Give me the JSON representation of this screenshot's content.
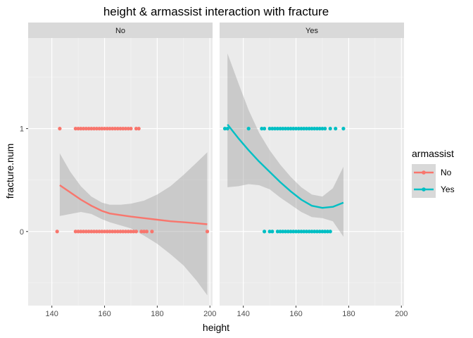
{
  "chart_data": {
    "type": "scatter",
    "title": "height & armassist  interaction with fracture",
    "xlabel": "height",
    "ylabel": "fracture.num",
    "xlim": [
      131,
      201
    ],
    "ylim": [
      -0.72,
      1.88
    ],
    "x_ticks": [
      140,
      160,
      180,
      200
    ],
    "x_tick_labels": [
      "140",
      "160",
      "180",
      "200"
    ],
    "y_ticks": [
      0,
      1
    ],
    "y_tick_labels": [
      "0",
      "1"
    ],
    "grid": true,
    "legend": {
      "title": "armassist",
      "position": "right",
      "entries": [
        {
          "label": "No",
          "color": "#F8766D"
        },
        {
          "label": "Yes",
          "color": "#00BFC4"
        }
      ]
    },
    "panels": [
      {
        "label": "No",
        "color": "#F8766D",
        "points_y1": [
          143,
          149,
          150,
          151,
          152,
          153,
          154,
          155,
          156,
          157,
          158,
          159,
          160,
          161,
          162,
          163,
          164,
          165,
          166,
          167,
          168,
          169,
          170,
          172,
          173
        ],
        "points_y0": [
          142,
          149,
          150,
          151,
          152,
          153,
          154,
          155,
          156,
          157,
          158,
          159,
          160,
          161,
          162,
          163,
          164,
          165,
          166,
          167,
          168,
          169,
          170,
          171,
          172,
          174,
          175,
          176,
          178,
          199
        ],
        "smooth": {
          "x": [
            143,
            147,
            151,
            155,
            159,
            162,
            166,
            170,
            175,
            180,
            185,
            190,
            195,
            199
          ],
          "y": [
            0.45,
            0.38,
            0.31,
            0.25,
            0.2,
            0.175,
            0.16,
            0.145,
            0.13,
            0.115,
            0.1,
            0.09,
            0.08,
            0.07
          ],
          "lo": [
            0.15,
            0.17,
            0.19,
            0.17,
            0.12,
            0.09,
            0.06,
            0.03,
            -0.04,
            -0.12,
            -0.22,
            -0.33,
            -0.48,
            -0.62
          ],
          "hi": [
            0.76,
            0.58,
            0.44,
            0.34,
            0.28,
            0.26,
            0.26,
            0.27,
            0.3,
            0.36,
            0.44,
            0.55,
            0.67,
            0.77
          ]
        }
      },
      {
        "label": "Yes",
        "color": "#00BFC4",
        "points_y1": [
          133,
          134,
          142,
          147,
          148,
          150,
          151,
          152,
          153,
          154,
          155,
          156,
          157,
          158,
          159,
          160,
          161,
          162,
          163,
          164,
          165,
          166,
          167,
          168,
          169,
          170,
          171,
          173,
          175,
          178
        ],
        "points_y0": [
          148,
          150,
          151,
          153,
          154,
          155,
          156,
          157,
          158,
          159,
          160,
          161,
          162,
          163,
          164,
          165,
          166,
          167,
          168,
          169,
          170,
          171,
          172,
          173
        ],
        "smooth": {
          "x": [
            134,
            138,
            142,
            146,
            150,
            154,
            158,
            162,
            166,
            170,
            174,
            178
          ],
          "y": [
            1.04,
            0.91,
            0.79,
            0.68,
            0.58,
            0.48,
            0.39,
            0.31,
            0.25,
            0.23,
            0.24,
            0.28
          ],
          "lo": [
            0.43,
            0.44,
            0.46,
            0.45,
            0.41,
            0.33,
            0.26,
            0.19,
            0.14,
            0.13,
            0.1,
            -0.05
          ],
          "hi": [
            1.73,
            1.45,
            1.18,
            0.96,
            0.79,
            0.65,
            0.53,
            0.43,
            0.36,
            0.34,
            0.42,
            0.63
          ]
        }
      }
    ]
  }
}
